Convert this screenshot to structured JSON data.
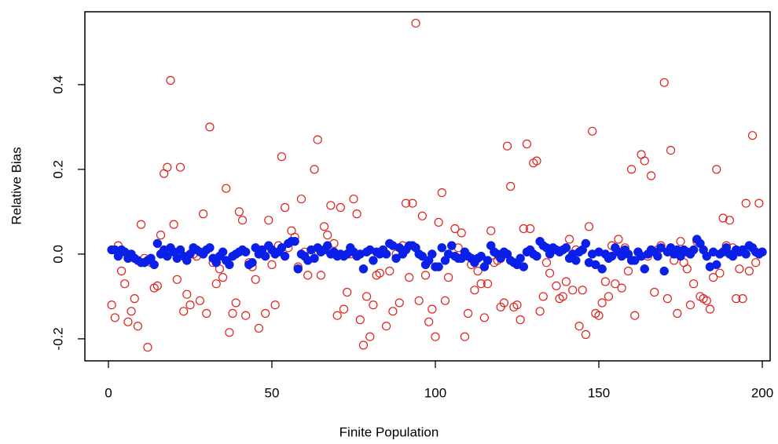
{
  "chart_data": {
    "type": "scatter",
    "x_label": "Finite Population",
    "y_label": "Relative Bias",
    "xlim": [
      -7.2,
      202.4
    ],
    "ylim": [
      -0.252,
      0.572
    ],
    "xticks": [
      0,
      50,
      100,
      150,
      200
    ],
    "yticks": [
      -0.2,
      {
        "value": 0,
        "label": "0.0"
      },
      0.2,
      0.4
    ],
    "x": [
      1,
      2,
      3,
      4,
      5,
      6,
      7,
      8,
      9,
      10,
      11,
      12,
      13,
      14,
      15,
      16,
      17,
      18,
      19,
      20,
      21,
      22,
      23,
      24,
      25,
      26,
      27,
      28,
      29,
      30,
      31,
      32,
      33,
      34,
      35,
      36,
      37,
      38,
      39,
      40,
      41,
      42,
      43,
      44,
      45,
      46,
      47,
      48,
      49,
      50,
      51,
      52,
      53,
      54,
      55,
      56,
      57,
      58,
      59,
      60,
      61,
      62,
      63,
      64,
      65,
      66,
      67,
      68,
      69,
      70,
      71,
      72,
      73,
      74,
      75,
      76,
      77,
      78,
      79,
      80,
      81,
      82,
      83,
      84,
      85,
      86,
      87,
      88,
      89,
      90,
      91,
      92,
      93,
      94,
      95,
      96,
      97,
      98,
      99,
      100,
      101,
      102,
      103,
      104,
      105,
      106,
      107,
      108,
      109,
      110,
      111,
      112,
      113,
      114,
      115,
      116,
      117,
      118,
      119,
      120,
      121,
      122,
      123,
      124,
      125,
      126,
      127,
      128,
      129,
      130,
      131,
      132,
      133,
      134,
      135,
      136,
      137,
      138,
      139,
      140,
      141,
      142,
      143,
      144,
      145,
      146,
      147,
      148,
      149,
      150,
      151,
      152,
      153,
      154,
      155,
      156,
      157,
      158,
      159,
      160,
      161,
      162,
      163,
      164,
      165,
      166,
      167,
      168,
      169,
      170,
      171,
      172,
      173,
      174,
      175,
      176,
      177,
      178,
      179,
      180,
      181,
      182,
      183,
      184,
      185,
      186,
      187,
      188,
      189,
      190,
      191,
      192,
      193,
      194,
      195,
      196,
      197,
      198,
      199,
      200
    ],
    "series": [
      {
        "color": "#e0201b",
        "filled": false,
        "values": [
          -0.12,
          -0.15,
          0.02,
          -0.04,
          -0.07,
          -0.16,
          -0.135,
          -0.105,
          -0.17,
          0.07,
          -0.01,
          -0.22,
          -0.02,
          -0.08,
          -0.075,
          0.045,
          0.19,
          0.205,
          0.41,
          0.07,
          -0.06,
          0.205,
          -0.135,
          -0.095,
          -0.12,
          0.0,
          -0.005,
          -0.11,
          0.095,
          -0.14,
          0.3,
          -0.02,
          -0.07,
          -0.035,
          -0.055,
          0.155,
          -0.185,
          -0.14,
          -0.115,
          0.1,
          0.08,
          -0.145,
          -0.02,
          -0.03,
          -0.06,
          -0.175,
          0.01,
          -0.14,
          0.08,
          -0.025,
          -0.12,
          0.02,
          0.23,
          0.11,
          0.015,
          0.055,
          0.04,
          -0.03,
          0.13,
          0.005,
          -0.05,
          0.0,
          0.2,
          0.27,
          -0.05,
          0.065,
          0.045,
          0.115,
          0.025,
          -0.145,
          0.11,
          -0.13,
          -0.09,
          0.0,
          0.13,
          0.095,
          -0.155,
          -0.215,
          -0.1,
          -0.195,
          -0.12,
          -0.05,
          -0.045,
          0.01,
          -0.17,
          -0.04,
          -0.135,
          0.0,
          -0.115,
          0.02,
          0.12,
          -0.055,
          0.12,
          0.545,
          -0.11,
          0.09,
          -0.05,
          -0.16,
          -0.13,
          -0.195,
          0.075,
          0.145,
          -0.11,
          -0.055,
          0.02,
          0.06,
          0.015,
          0.05,
          -0.195,
          -0.14,
          -0.025,
          -0.085,
          -0.04,
          -0.07,
          -0.15,
          -0.07,
          0.055,
          -0.02,
          -0.015,
          -0.125,
          -0.115,
          0.255,
          0.16,
          -0.125,
          -0.12,
          -0.155,
          0.06,
          0.26,
          0.06,
          0.215,
          0.22,
          -0.135,
          -0.1,
          -0.02,
          -0.045,
          0.01,
          -0.075,
          -0.105,
          -0.1,
          -0.065,
          0.035,
          -0.085,
          0.01,
          -0.17,
          -0.085,
          -0.19,
          0.065,
          0.29,
          -0.14,
          -0.145,
          -0.115,
          -0.065,
          -0.1,
          0.02,
          -0.07,
          0.035,
          -0.08,
          0.015,
          -0.04,
          0.2,
          -0.145,
          0.005,
          0.235,
          0.22,
          -0.005,
          0.185,
          -0.09,
          0.01,
          0.02,
          0.405,
          -0.105,
          0.245,
          -0.015,
          -0.14,
          0.03,
          -0.02,
          -0.035,
          -0.12,
          -0.07,
          0.03,
          -0.1,
          -0.105,
          -0.11,
          -0.13,
          -0.055,
          0.2,
          -0.045,
          0.085,
          0.02,
          0.08,
          0.015,
          -0.105,
          -0.035,
          -0.105,
          0.12,
          -0.04,
          0.28,
          -0.02,
          0.12,
          0.005
        ]
      },
      {
        "color": "#0a1fe8",
        "filled": true,
        "values": [
          0.01,
          0.01,
          -0.005,
          0.01,
          0.005,
          -0.01,
          0.0,
          -0.01,
          -0.015,
          -0.02,
          -0.02,
          -0.015,
          -0.01,
          -0.025,
          0.025,
          0.0,
          0.01,
          -0.005,
          0.015,
          0.005,
          -0.01,
          0.01,
          -0.005,
          -0.015,
          0.0,
          0.015,
          0.01,
          0.005,
          0.0,
          0.01,
          0.015,
          -0.01,
          -0.02,
          -0.005,
          0.005,
          -0.015,
          -0.025,
          -0.005,
          0.0,
          0.005,
          0.01,
          0.005,
          -0.025,
          -0.02,
          0.015,
          0.0,
          0.01,
          -0.005,
          0.02,
          0.01,
          0.0,
          0.005,
          0.015,
          -0.005,
          0.025,
          0.03,
          0.03,
          -0.035,
          0.0,
          -0.005,
          -0.015,
          0.01,
          -0.01,
          0.015,
          0.005,
          0.01,
          0.02,
          0.0,
          0.005,
          -0.005,
          0.0,
          -0.005,
          0.0,
          0.015,
          0.005,
          -0.005,
          0.0,
          -0.035,
          0.005,
          0.01,
          -0.015,
          0.005,
          0.0,
          0.01,
          0.0,
          0.025,
          0.02,
          -0.01,
          0.015,
          0.0,
          0.01,
          0.02,
          0.02,
          0.015,
          0.0,
          -0.005,
          -0.025,
          -0.015,
          0.0,
          -0.03,
          -0.03,
          0.015,
          -0.015,
          0.0,
          0.02,
          -0.005,
          -0.01,
          -0.01,
          0.005,
          -0.005,
          -0.01,
          -0.02,
          -0.01,
          -0.005,
          -0.03,
          -0.015,
          0.02,
          0.005,
          0.0,
          -0.01,
          0.005,
          0.0,
          -0.015,
          -0.02,
          -0.025,
          -0.01,
          -0.03,
          0.005,
          0.01,
          0.0,
          -0.005,
          0.03,
          0.02,
          0.015,
          0.0,
          0.015,
          0.01,
          0.005,
          0.01,
          0.015,
          -0.01,
          0.0,
          -0.015,
          0.005,
          0.01,
          0.025,
          -0.02,
          0.0,
          -0.025,
          0.005,
          -0.035,
          0.0,
          -0.01,
          -0.005,
          0.015,
          0.005,
          -0.005,
          0.01,
          0.0,
          -0.015,
          -0.015,
          0.005,
          -0.005,
          -0.035,
          0.0,
          0.01,
          0.005,
          -0.005,
          0.015,
          -0.04,
          0.005,
          0.015,
          0.0,
          0.01,
          -0.005,
          0.01,
          0.005,
          0.0,
          0.01,
          0.035,
          0.025,
          0.01,
          -0.005,
          -0.03,
          0.005,
          -0.025,
          0.0,
          0.005,
          0.015,
          0.0,
          -0.005,
          0.01,
          0.005,
          0.01,
          0.0,
          0.02,
          0.015,
          0.005,
          0.0,
          0.005
        ]
      }
    ]
  }
}
